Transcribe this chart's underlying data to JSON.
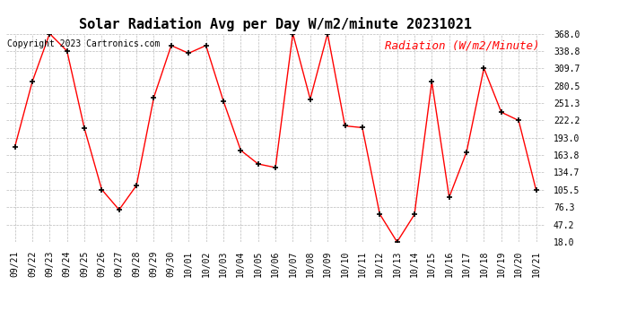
{
  "title": "Solar Radiation Avg per Day W/m2/minute 20231021",
  "copyright_text": "Copyright 2023 Cartronics.com",
  "legend_label": "Radiation (W/m2/Minute)",
  "x_labels": [
    "09/21",
    "09/22",
    "09/23",
    "09/24",
    "09/25",
    "09/26",
    "09/27",
    "09/28",
    "09/29",
    "09/30",
    "10/01",
    "10/02",
    "10/03",
    "10/04",
    "10/05",
    "10/06",
    "10/07",
    "10/08",
    "10/09",
    "10/10",
    "10/11",
    "10/12",
    "10/13",
    "10/14",
    "10/15",
    "10/16",
    "10/17",
    "10/18",
    "10/19",
    "10/20",
    "10/21"
  ],
  "y_values": [
    178.0,
    287.0,
    368.0,
    338.8,
    209.0,
    106.0,
    72.0,
    113.0,
    261.0,
    348.0,
    335.0,
    348.0,
    255.0,
    172.0,
    149.0,
    143.0,
    368.0,
    258.0,
    368.0,
    213.0,
    210.0,
    65.0,
    18.0,
    64.0,
    287.0,
    93.0,
    169.0,
    310.0,
    236.0,
    222.0,
    105.5
  ],
  "line_color": "red",
  "marker_color": "black",
  "background_color": "#ffffff",
  "grid_color": "#bbbbbb",
  "title_fontsize": 11,
  "copyright_fontsize": 7,
  "legend_fontsize": 9,
  "tick_fontsize": 7,
  "y_ticks": [
    18.0,
    47.2,
    76.3,
    105.5,
    134.7,
    163.8,
    193.0,
    222.2,
    251.3,
    280.5,
    309.7,
    338.8,
    368.0
  ],
  "ylim": [
    18.0,
    368.0
  ],
  "figure_width": 6.9,
  "figure_height": 3.75,
  "dpi": 100
}
